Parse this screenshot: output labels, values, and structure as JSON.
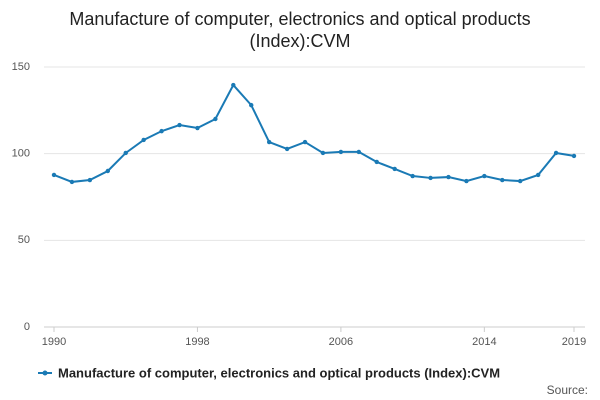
{
  "chart_data": {
    "type": "line",
    "title": "Manufacture of computer, electronics and optical products (Index):CVM",
    "x": [
      1990,
      1991,
      1992,
      1993,
      1994,
      1995,
      1996,
      1997,
      1998,
      1999,
      2000,
      2001,
      2002,
      2003,
      2004,
      2005,
      2006,
      2007,
      2008,
      2009,
      2010,
      2011,
      2012,
      2013,
      2014,
      2015,
      2016,
      2017,
      2018,
      2019
    ],
    "series": [
      {
        "name": "Manufacture of computer, electronics and optical products (Index):CVM",
        "color": "#1a7ab5",
        "values": [
          87.7,
          83.7,
          84.8,
          90,
          100.4,
          107.9,
          113,
          116.5,
          114.8,
          120,
          139.6,
          128,
          106.7,
          102.7,
          106.7,
          100.4,
          101,
          101,
          95.2,
          91.2,
          87.1,
          86,
          86.5,
          84.2,
          87.1,
          84.8,
          84.2,
          87.7,
          100.4,
          98.7
        ]
      }
    ],
    "xlim": [
      1990,
      2019
    ],
    "xticks": [
      1990,
      1998,
      2006,
      2014,
      2019
    ],
    "ylim": [
      0,
      150
    ],
    "yticks": [
      0,
      50,
      100,
      150
    ],
    "grid": true,
    "source": "Source:"
  }
}
